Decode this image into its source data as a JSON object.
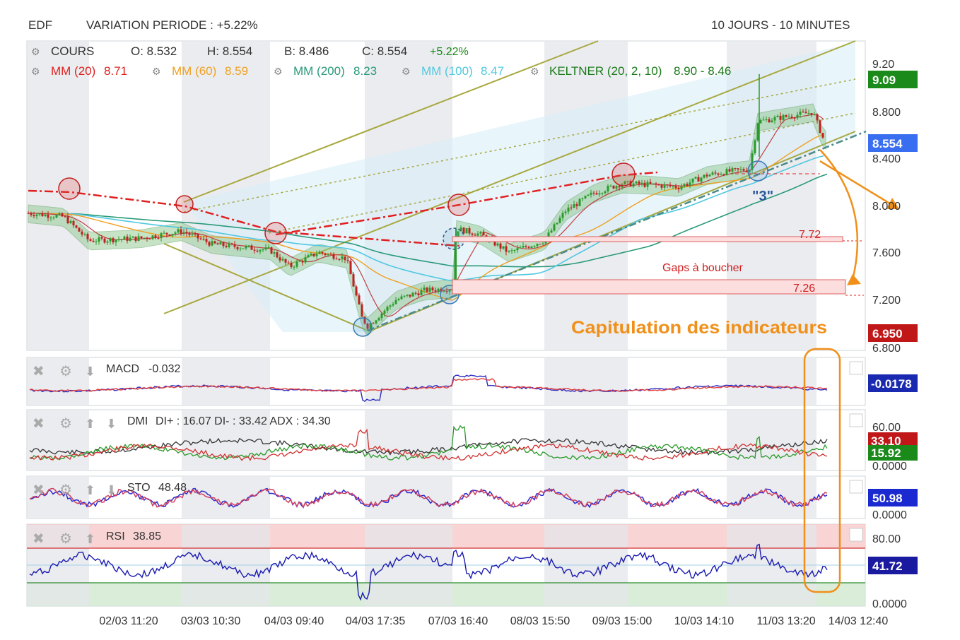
{
  "header": {
    "symbol": "EDF",
    "variation": "VARIATION PERIODE : +5.22%",
    "period": "10 JOURS - 10 MINUTES"
  },
  "price_panel": {
    "legend": {
      "cours": "COURS",
      "open": "O: 8.532",
      "high": "H: 8.554",
      "low": "B: 8.486",
      "close": "C: 8.554",
      "change": "+5.22%"
    },
    "indicators": [
      {
        "name": "MM (20)",
        "value": "8.71",
        "color": "#e02020"
      },
      {
        "name": "MM (60)",
        "value": "8.59",
        "color": "#f0a020"
      },
      {
        "name": "MM (200)",
        "value": "8.23",
        "color": "#2a9a7a"
      },
      {
        "name": "MM (100)",
        "value": "8.47",
        "color": "#50c8e0"
      },
      {
        "name": "KELTNER (20, 2, 10)",
        "value": "8.90 - 8.46",
        "color": "#1a8a1a"
      }
    ],
    "y_ticks": [
      "9.20",
      "8.800",
      "8.400",
      "8.000",
      "7.600",
      "7.200",
      "6.800"
    ],
    "badges": [
      {
        "label": "9.09",
        "color": "#1a8a1a"
      },
      {
        "label": "8.554",
        "color": "#3a6ef0"
      },
      {
        "label": "6.950",
        "color": "#c01818"
      }
    ],
    "gap_levels": [
      "7.72",
      "7.26"
    ],
    "gaps_label": "Gaps à boucher",
    "capitulation_label": "Capitulation des indicateurs",
    "wave_label": "\"3\""
  },
  "x_ticks": [
    "02/03 11:20",
    "03/03 10:30",
    "04/03 09:40",
    "04/03 17:35",
    "07/03 16:40",
    "08/03 15:50",
    "09/03 15:00",
    "10/03 14:10",
    "11/03 13:20",
    "14/03 12:40"
  ],
  "macd": {
    "label": "MACD",
    "value": "-0.032",
    "badge": "-0.0178",
    "badge_color": "#1a2ab0"
  },
  "dmi": {
    "label": "DMI",
    "values": "DI+ : 16.07 DI- : 33.42 ADX : 34.30",
    "y_top": "60.00",
    "y_bottom": "0.0000",
    "badges": [
      {
        "label": "33.10",
        "color": "#c01818"
      },
      {
        "label": "15.92",
        "color": "#1a8a1a"
      }
    ]
  },
  "sto": {
    "label": "STO",
    "value": "48.48",
    "y_bottom": "0.0000",
    "badge": "50.98",
    "badge_color": "#1a2ad0"
  },
  "rsi": {
    "label": "RSI",
    "value": "38.85",
    "y_top": "80.00",
    "y_bottom": "0.0000",
    "badge": "41.72",
    "badge_color": "#1a1aa0"
  },
  "chart_data": {
    "type": "line",
    "x": [
      "02/03 11:20",
      "03/03 10:30",
      "04/03 09:40",
      "04/03 17:35",
      "07/03 16:40",
      "08/03 15:50",
      "09/03 15:00",
      "10/03 14:10",
      "11/03 13:20",
      "14/03 12:40"
    ],
    "series": [
      {
        "name": "COURS",
        "values": [
          7.85,
          7.72,
          7.55,
          6.98,
          7.3,
          7.7,
          8.15,
          8.3,
          8.75,
          8.554
        ]
      }
    ],
    "ylim": [
      6.8,
      9.3
    ],
    "annotations": [
      "7.72",
      "7.26",
      "Gaps à boucher",
      "Capitulation des indicateurs"
    ]
  }
}
